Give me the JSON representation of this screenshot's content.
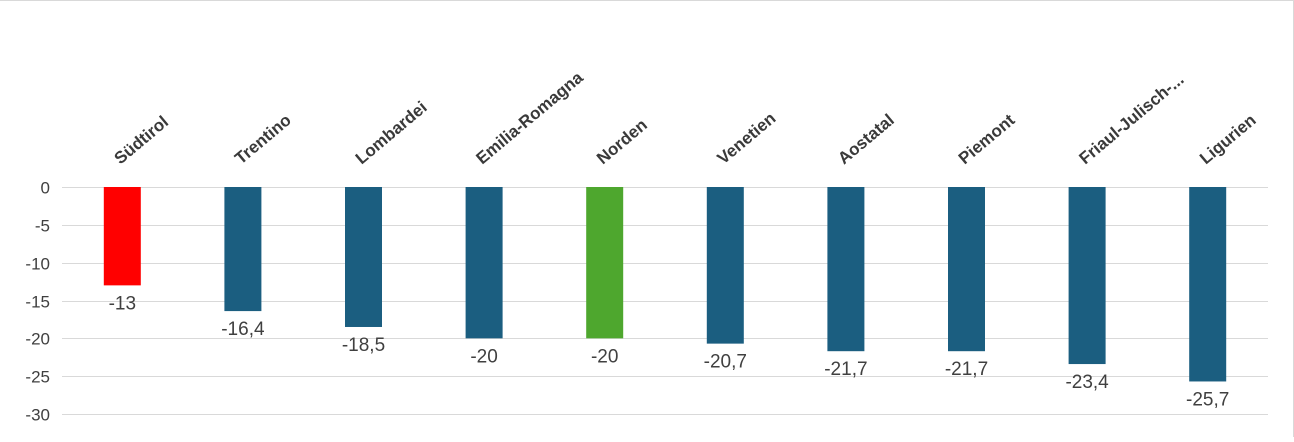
{
  "colors": {
    "default_bar": "#1b5e80",
    "highlight_red": "#ff0000",
    "highlight_green": "#4ea72e",
    "grid": "#d9d9d9",
    "text": "#404040"
  },
  "chart_data": {
    "type": "bar",
    "categories": [
      "Südtirol",
      "Trentino",
      "Lombardei",
      "Emilia-Romagna",
      "Norden",
      "Venetien",
      "Aostatal",
      "Piemont",
      "Friaul-Julisch-...",
      "Ligurien"
    ],
    "values": [
      -13,
      -16.4,
      -18.5,
      -20,
      -20,
      -20.7,
      -21.7,
      -21.7,
      -23.4,
      -25.7
    ],
    "data_labels": [
      "-13",
      "-16,4",
      "-18,5",
      "-20",
      "-20",
      "-20,7",
      "-21,7",
      "-21,7",
      "-23,4",
      "-25,7"
    ],
    "bar_colors": [
      "#ff0000",
      "#1b5e80",
      "#1b5e80",
      "#1b5e80",
      "#4ea72e",
      "#1b5e80",
      "#1b5e80",
      "#1b5e80",
      "#1b5e80",
      "#1b5e80"
    ],
    "ylim": [
      -30,
      0
    ],
    "yticks": [
      0,
      -5,
      -10,
      -15,
      -20,
      -25,
      -30
    ],
    "ytick_labels": [
      "0",
      "-5",
      "-10",
      "-15",
      "-20",
      "-25",
      "-30"
    ],
    "grid": true,
    "legend": "none"
  }
}
